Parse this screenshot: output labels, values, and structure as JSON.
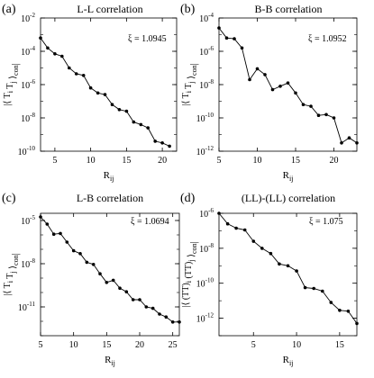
{
  "chart_data": [
    {
      "type": "line",
      "panel_label": "(a)",
      "title": "L-L correlation",
      "annotation": "ξ = 1.0945",
      "ylabel": "|⟨ T_i T_j ⟩_con|",
      "xlabel": "R_ij",
      "yscale": "log",
      "xlim": [
        3,
        22
      ],
      "ylim_exp": [
        -10,
        -2
      ],
      "xticks": [
        5,
        10,
        15,
        20
      ],
      "xtick_labels": [
        "5",
        "10",
        "15",
        "20"
      ],
      "yticks": [
        -10,
        -8,
        -6,
        -4,
        -2
      ],
      "ytick_labels": [
        "10",
        "10",
        "10",
        "10",
        "10"
      ],
      "ytick_exponents": [
        "-10",
        "-8",
        "-6",
        "-4",
        "-2"
      ],
      "series": [
        {
          "x": [
            3,
            4,
            5,
            6,
            7,
            8,
            9,
            10,
            11,
            12,
            13,
            14,
            15,
            16,
            17,
            18,
            19,
            20,
            21
          ],
          "y_exp": [
            -3.2,
            -3.8,
            -4.15,
            -4.3,
            -5.0,
            -5.35,
            -5.45,
            -6.2,
            -6.5,
            -6.6,
            -7.2,
            -7.5,
            -7.6,
            -8.25,
            -8.4,
            -8.6,
            -9.4,
            -9.5,
            -9.7
          ]
        }
      ]
    },
    {
      "type": "line",
      "panel_label": "(b)",
      "title": "B-B correlation",
      "annotation": "ξ = 1.0952",
      "ylabel": "|⟨ T_i T_j ⟩_con|",
      "xlabel": "R_ij",
      "yscale": "log",
      "xlim": [
        5,
        23
      ],
      "ylim_exp": [
        -12,
        -4
      ],
      "xticks": [
        5,
        10,
        15,
        20
      ],
      "xtick_labels": [
        "5",
        "10",
        "15",
        "20"
      ],
      "yticks": [
        -12,
        -10,
        -8,
        -6,
        -4
      ],
      "ytick_labels": [
        "10",
        "10",
        "10",
        "10",
        "10"
      ],
      "ytick_exponents": [
        "-12",
        "-10",
        "-8",
        "-6",
        "-4"
      ],
      "series": [
        {
          "x": [
            5,
            6,
            7,
            8,
            9,
            10,
            11,
            12,
            13,
            14,
            15,
            16,
            17,
            18,
            19,
            20,
            21,
            22,
            23
          ],
          "y_exp": [
            -4.6,
            -5.2,
            -5.25,
            -5.8,
            -7.7,
            -7.05,
            -7.4,
            -8.3,
            -8.1,
            -7.9,
            -8.5,
            -9.2,
            -9.3,
            -9.85,
            -9.8,
            -10.0,
            -11.5,
            -11.2,
            -11.5
          ]
        }
      ]
    },
    {
      "type": "line",
      "panel_label": "(c)",
      "title": "L-B correlation",
      "annotation": "ξ = 1.0694",
      "ylabel": "|⟨ T_i T_j ⟩_con|",
      "xlabel": "R_ij",
      "yscale": "log",
      "xlim": [
        5,
        26
      ],
      "ylim_exp": [
        -13,
        -4.5
      ],
      "xticks": [
        5,
        10,
        15,
        20,
        25
      ],
      "xtick_labels": [
        "5",
        "10",
        "15",
        "20",
        "25"
      ],
      "yticks": [
        -11,
        -8,
        -5
      ],
      "ytick_labels": [
        "10",
        "10",
        "10"
      ],
      "ytick_exponents": [
        "-11",
        "-8",
        "-5"
      ],
      "series": [
        {
          "x": [
            5,
            6,
            7,
            8,
            9,
            10,
            11,
            12,
            13,
            14,
            15,
            16,
            17,
            18,
            19,
            20,
            21,
            22,
            23,
            24,
            25,
            26
          ],
          "y_exp": [
            -4.75,
            -5.25,
            -5.95,
            -5.9,
            -6.5,
            -7.1,
            -7.3,
            -7.9,
            -8.05,
            -8.7,
            -9.3,
            -9.15,
            -9.7,
            -9.95,
            -10.5,
            -10.5,
            -11.0,
            -11.1,
            -11.5,
            -11.7,
            -12.05,
            -12.05
          ]
        }
      ]
    },
    {
      "type": "line",
      "panel_label": "(d)",
      "title": "(LL)-(LL) correlation",
      "annotation": "ξ = 1.075",
      "ylabel": "|⟨ (TT)_i (TT)_j ⟩_con|",
      "xlabel": "R_ij",
      "yscale": "log",
      "xlim": [
        1,
        17
      ],
      "ylim_exp": [
        -13,
        -6
      ],
      "xticks": [
        5,
        10,
        15
      ],
      "xtick_labels": [
        "5",
        "10",
        "15"
      ],
      "yticks": [
        -12,
        -10,
        -8,
        -6
      ],
      "ytick_labels": [
        "10",
        "10",
        "10",
        "10"
      ],
      "ytick_exponents": [
        "-12",
        "-10",
        "-8",
        "-6"
      ],
      "series": [
        {
          "x": [
            1,
            2,
            3,
            4,
            5,
            6,
            7,
            8,
            9,
            10,
            11,
            12,
            13,
            14,
            15,
            16,
            17
          ],
          "y_exp": [
            -6.0,
            -6.6,
            -6.85,
            -6.95,
            -7.6,
            -8.0,
            -8.3,
            -8.9,
            -9.0,
            -9.3,
            -10.25,
            -10.3,
            -10.45,
            -11.1,
            -11.55,
            -11.6,
            -12.3
          ]
        }
      ]
    }
  ]
}
